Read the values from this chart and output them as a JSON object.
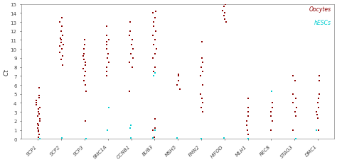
{
  "genes": [
    "SCP1",
    "SCP2",
    "SCP3",
    "SMC1A",
    "CCNB1",
    "BUB3",
    "MSH5",
    "FMN2",
    "HIFOO",
    "MLH1",
    "REC8",
    "STAG3",
    "DMC1"
  ],
  "oocyte_data": {
    "SCP1": [
      0.2,
      0.5,
      0.8,
      1.0,
      1.2,
      1.5,
      1.7,
      2.0,
      2.2,
      2.5,
      2.8,
      3.0,
      3.3,
      3.5,
      3.8,
      4.0,
      4.3,
      4.6,
      4.8,
      5.7
    ],
    "SCP2": [
      8.2,
      8.8,
      9.2,
      9.6,
      10.0,
      10.3,
      10.5,
      10.7,
      11.0,
      11.2,
      11.5,
      12.0,
      12.5,
      13.0,
      13.5
    ],
    "SCP3": [
      2.0,
      5.3,
      6.0,
      6.5,
      7.0,
      7.5,
      7.8,
      8.2,
      8.5,
      8.8,
      9.2,
      9.5,
      10.0,
      10.5,
      11.0
    ],
    "SMC1A": [
      7.0,
      7.5,
      8.0,
      8.5,
      9.0,
      9.5,
      10.0,
      10.5,
      10.8,
      11.0,
      11.5,
      12.5
    ],
    "CCNB1": [
      5.3,
      8.0,
      8.5,
      9.0,
      9.5,
      10.0,
      10.5,
      11.0,
      11.5,
      12.0,
      13.0
    ],
    "BUB3": [
      0.2,
      1.0,
      1.2,
      2.2,
      7.5,
      8.0,
      9.0,
      9.5,
      10.0,
      10.5,
      11.0,
      11.5,
      12.0,
      12.5,
      13.0,
      13.5,
      14.0,
      14.2
    ],
    "MSH5": [
      5.5,
      6.0,
      6.5,
      7.0,
      7.2
    ],
    "FMN2": [
      3.0,
      3.5,
      4.0,
      4.5,
      5.0,
      6.0,
      7.0,
      7.5,
      8.0,
      8.5,
      9.0,
      10.8
    ],
    "HIFOO": [
      13.0,
      13.3,
      13.7,
      14.0,
      14.3,
      14.7,
      15.0
    ],
    "MLH1": [
      0.5,
      1.0,
      1.5,
      2.0,
      2.5,
      3.0,
      3.5,
      4.5
    ],
    "REC8": [
      1.0,
      2.0,
      2.5,
      3.0,
      3.5,
      4.0
    ],
    "STAG3": [
      1.0,
      2.5,
      3.0,
      3.5,
      4.0,
      4.5,
      5.0,
      6.5,
      7.0
    ],
    "DMC1": [
      1.0,
      2.3,
      2.7,
      3.0,
      3.5,
      4.0,
      4.5,
      5.0,
      6.5,
      7.0
    ]
  },
  "hesc_data": {
    "SCP1": [
      0.05
    ],
    "SCP2": [
      0.1
    ],
    "SCP3": [
      0.05
    ],
    "SMC1A": [
      1.0,
      3.5
    ],
    "CCNB1": [
      0.1,
      1.2,
      1.5
    ],
    "BUB3": [
      0.1,
      1.0,
      7.0,
      7.3
    ],
    "MSH5": [
      0.1
    ],
    "FMN2": [
      0.05
    ],
    "HIFOO": [
      0.1
    ],
    "MLH1": [
      0.05
    ],
    "REC8": [
      5.3
    ],
    "STAG3": [
      0.05
    ],
    "DMC1": [
      1.0
    ]
  },
  "oocyte_color": "#8B0000",
  "hesc_color": "#00CED1",
  "ylabel": "Ct",
  "ylim": [
    0,
    15
  ],
  "yticks": [
    0,
    1,
    2,
    3,
    4,
    5,
    6,
    7,
    8,
    9,
    10,
    11,
    12,
    13,
    14,
    15
  ],
  "legend_oocytes": "Oocytes",
  "legend_hesc": "hESCs",
  "bg_color": "#ffffff"
}
